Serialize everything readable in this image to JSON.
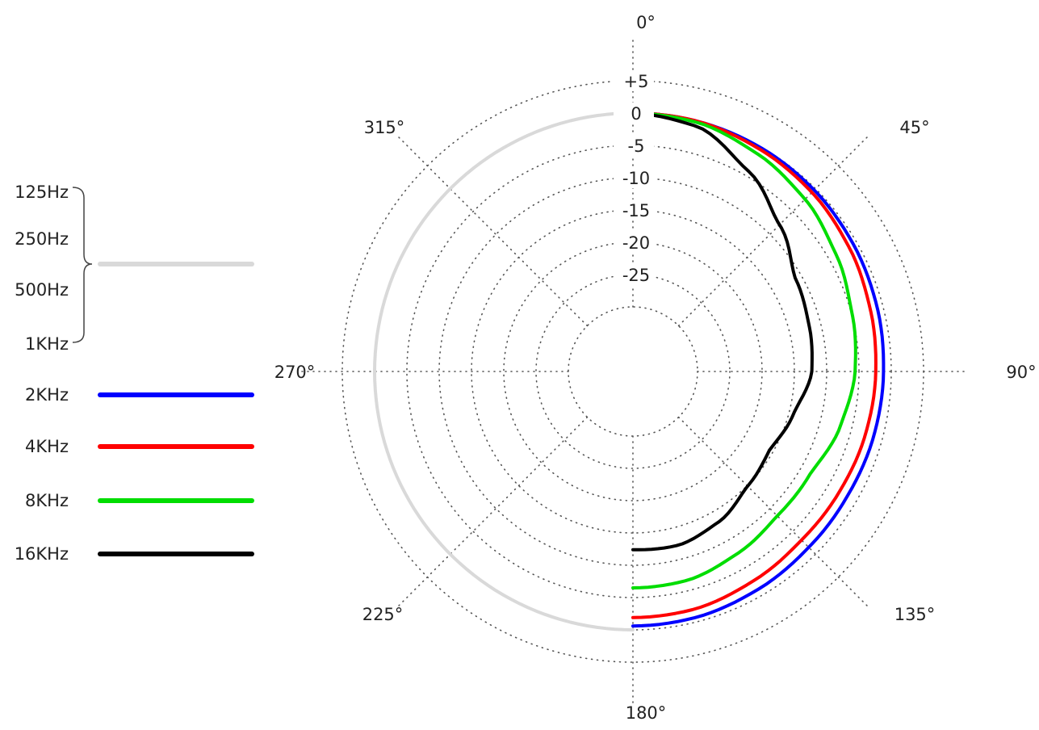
{
  "chart_data": {
    "type": "line",
    "subtype": "polar",
    "angular_ticks": [
      {
        "angle": 0,
        "label": "0°"
      },
      {
        "angle": 45,
        "label": "45°"
      },
      {
        "angle": 90,
        "label": "90°"
      },
      {
        "angle": 135,
        "label": "135°"
      },
      {
        "angle": 180,
        "label": "180°"
      },
      {
        "angle": 225,
        "label": "225°"
      },
      {
        "angle": 270,
        "label": "270°"
      },
      {
        "angle": 315,
        "label": "315°"
      }
    ],
    "radial_axis": {
      "range_db": [
        -35,
        5
      ],
      "ticks": [
        5,
        0,
        -5,
        -10,
        -15,
        -20,
        -25
      ],
      "tick_labels": [
        "+5",
        "0",
        "-5",
        "-10",
        "-15",
        "-20",
        "-25"
      ],
      "circle_levels": [
        5,
        0,
        -5,
        -10,
        -15,
        -20,
        -25,
        -30
      ]
    },
    "grid": true,
    "legend": {
      "placement": "left",
      "group": {
        "labels": [
          "125Hz",
          "250Hz",
          "500Hz",
          "1KHz"
        ],
        "color": "#d9d9d9"
      },
      "entries": [
        {
          "label": "2KHz",
          "color": "#0000ff"
        },
        {
          "label": "4KHz",
          "color": "#ff0000"
        },
        {
          "label": "8KHz",
          "color": "#00dd00"
        },
        {
          "label": "16KHz",
          "color": "#000000"
        }
      ]
    },
    "series": [
      {
        "name": "125Hz / 250Hz / 500Hz / 1KHz",
        "color": "#d9d9d9",
        "side": "left",
        "points": [
          [
            0,
            0
          ],
          [
            180,
            0
          ]
        ]
      },
      {
        "name": "2KHz",
        "color": "#0000ff",
        "side": "right",
        "points": [
          [
            0,
            0
          ],
          [
            15,
            0
          ],
          [
            30,
            -0.1
          ],
          [
            45,
            -0.3
          ],
          [
            60,
            -0.6
          ],
          [
            75,
            -0.9
          ],
          [
            90,
            -1.2
          ],
          [
            105,
            -1.4
          ],
          [
            120,
            -1.6
          ],
          [
            135,
            -1.5
          ],
          [
            150,
            -1.1
          ],
          [
            165,
            -0.7
          ],
          [
            180,
            -0.6
          ]
        ]
      },
      {
        "name": "4KHz",
        "color": "#ff0000",
        "side": "right",
        "points": [
          [
            0,
            0
          ],
          [
            15,
            0
          ],
          [
            30,
            -0.4
          ],
          [
            45,
            -0.8
          ],
          [
            60,
            -1.4
          ],
          [
            75,
            -2.0
          ],
          [
            90,
            -2.4
          ],
          [
            105,
            -2.7
          ],
          [
            120,
            -3.0
          ],
          [
            135,
            -3.1
          ],
          [
            150,
            -2.6
          ],
          [
            165,
            -2.0
          ],
          [
            180,
            -1.9
          ]
        ]
      },
      {
        "name": "8KHz",
        "color": "#00dd00",
        "side": "right",
        "points": [
          [
            0,
            0
          ],
          [
            15,
            -0.2
          ],
          [
            30,
            -1.2
          ],
          [
            45,
            -2.3
          ],
          [
            60,
            -3.7
          ],
          [
            75,
            -4.9
          ],
          [
            90,
            -5.6
          ],
          [
            105,
            -6.8
          ],
          [
            120,
            -8.3
          ],
          [
            135,
            -8.4
          ],
          [
            150,
            -7.5
          ],
          [
            165,
            -6.6
          ],
          [
            180,
            -6.5
          ]
        ]
      },
      {
        "name": "16KHz",
        "color": "#000000",
        "side": "right",
        "points": [
          [
            0,
            0
          ],
          [
            15,
            -0.8
          ],
          [
            30,
            -4.2
          ],
          [
            45,
            -7.9
          ],
          [
            60,
            -11.0
          ],
          [
            75,
            -11.8
          ],
          [
            90,
            -12.3
          ],
          [
            105,
            -14.3
          ],
          [
            120,
            -15.6
          ],
          [
            135,
            -14.9
          ],
          [
            150,
            -13.2
          ],
          [
            165,
            -12.2
          ],
          [
            180,
            -12.4
          ]
        ]
      }
    ]
  }
}
